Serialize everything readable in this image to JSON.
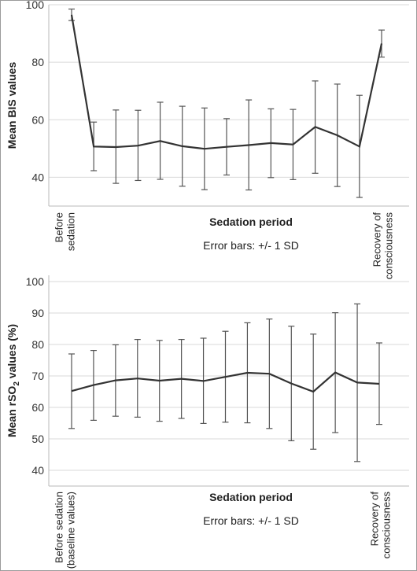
{
  "chart_data": [
    {
      "type": "line",
      "ylabel": "Mean BIS values",
      "xlabel": "Sedation period",
      "note": "Error bars: +/- 1 SD",
      "ylim": [
        30,
        100
      ],
      "yticks": [
        40,
        60,
        80,
        100
      ],
      "x_end_labels": {
        "first": [
          "Before",
          "sedation"
        ],
        "last": [
          "Recovery of",
          "consciousness"
        ]
      },
      "grid": true,
      "points": [
        {
          "mean": 96.5,
          "lo": 94.5,
          "hi": 98.5
        },
        {
          "mean": 50.7,
          "lo": 42.3,
          "hi": 59.2
        },
        {
          "mean": 50.5,
          "lo": 37.9,
          "hi": 63.4
        },
        {
          "mean": 51.0,
          "lo": 38.9,
          "hi": 63.3
        },
        {
          "mean": 52.6,
          "lo": 39.3,
          "hi": 66.1
        },
        {
          "mean": 50.8,
          "lo": 36.9,
          "hi": 64.7
        },
        {
          "mean": 49.9,
          "lo": 35.7,
          "hi": 64.1
        },
        {
          "mean": 50.6,
          "lo": 40.8,
          "hi": 60.4
        },
        {
          "mean": 51.2,
          "lo": 35.6,
          "hi": 66.9
        },
        {
          "mean": 51.9,
          "lo": 39.9,
          "hi": 63.8
        },
        {
          "mean": 51.4,
          "lo": 39.2,
          "hi": 63.6
        },
        {
          "mean": 57.5,
          "lo": 41.4,
          "hi": 73.5
        },
        {
          "mean": 54.6,
          "lo": 36.8,
          "hi": 72.4
        },
        {
          "mean": 50.7,
          "lo": 33.0,
          "hi": 68.5
        },
        {
          "mean": 86.5,
          "lo": 81.8,
          "hi": 91.2
        }
      ]
    },
    {
      "type": "line",
      "ylabel_parts": [
        "Mean rSO",
        "2",
        " values (%)"
      ],
      "xlabel": "Sedation period",
      "note": "Error bars: +/- 1 SD",
      "ylim": [
        35,
        102
      ],
      "yticks": [
        40,
        50,
        60,
        70,
        80,
        90,
        100
      ],
      "x_end_labels": {
        "first": [
          "Before sedation",
          "(baseline values)"
        ],
        "last": [
          "Recovery of",
          "consciousness"
        ]
      },
      "grid": true,
      "points": [
        {
          "mean": 65.2,
          "lo": 53.3,
          "hi": 77.0
        },
        {
          "mean": 67.1,
          "lo": 55.9,
          "hi": 78.1
        },
        {
          "mean": 68.6,
          "lo": 57.2,
          "hi": 79.9
        },
        {
          "mean": 69.2,
          "lo": 56.9,
          "hi": 81.6
        },
        {
          "mean": 68.5,
          "lo": 55.6,
          "hi": 81.3
        },
        {
          "mean": 69.1,
          "lo": 56.5,
          "hi": 81.6
        },
        {
          "mean": 68.4,
          "lo": 54.9,
          "hi": 82.0
        },
        {
          "mean": 69.7,
          "lo": 55.3,
          "hi": 84.2
        },
        {
          "mean": 71.0,
          "lo": 55.1,
          "hi": 86.9
        },
        {
          "mean": 70.7,
          "lo": 53.3,
          "hi": 88.1
        },
        {
          "mean": 67.6,
          "lo": 49.4,
          "hi": 85.8
        },
        {
          "mean": 65.0,
          "lo": 46.7,
          "hi": 83.3
        },
        {
          "mean": 71.1,
          "lo": 52.0,
          "hi": 90.1
        },
        {
          "mean": 67.9,
          "lo": 42.8,
          "hi": 92.9
        },
        {
          "mean": 67.5,
          "lo": 54.6,
          "hi": 80.5
        }
      ]
    }
  ]
}
